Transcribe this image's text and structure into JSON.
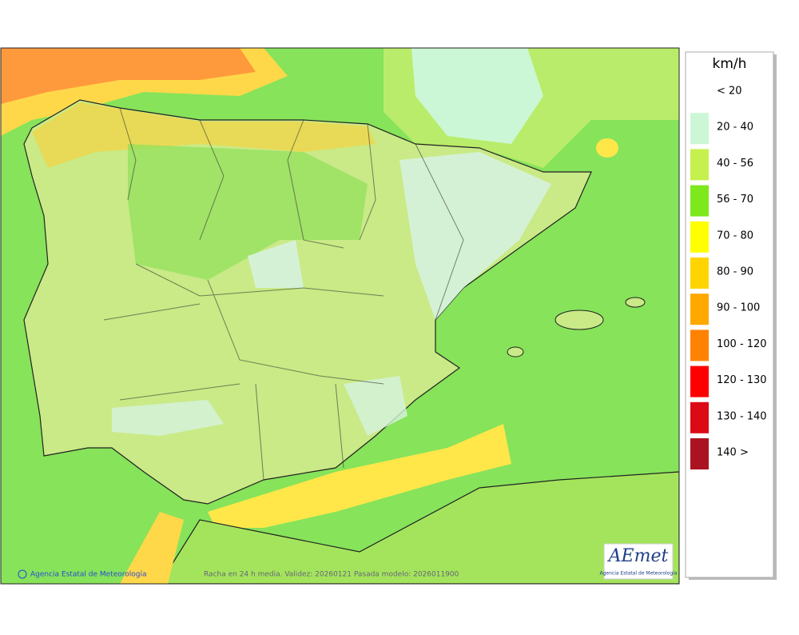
{
  "legend": {
    "unit": "km/h",
    "items": [
      {
        "label": "< 20"
      },
      {
        "label": "20 - 40",
        "color": "#ccf7d6"
      },
      {
        "label": "40 - 56",
        "color": "#c6f04e"
      },
      {
        "label": "56 - 70",
        "color": "#7de81c"
      },
      {
        "label": "70 - 80",
        "color": "#ffff00"
      },
      {
        "label": "80 - 90",
        "color": "#ffd400"
      },
      {
        "label": "90 - 100",
        "color": "#ffa800"
      },
      {
        "label": "100 - 120",
        "color": "#ff8200"
      },
      {
        "label": "120 - 130",
        "color": "#ff0000"
      },
      {
        "label": "130 - 140",
        "color": "#dc0a14"
      },
      {
        "label": "140 >",
        "color": "#aa1420"
      }
    ]
  },
  "footer": {
    "credit": "Agencia Estatal de Meteorología",
    "caption": "Racha en 24 h media. Validez: 20260121 Pasada modelo: 2026011900"
  },
  "logo": {
    "text": "AEmet",
    "subtitle": "Agencia Estatal de Meteorología"
  }
}
